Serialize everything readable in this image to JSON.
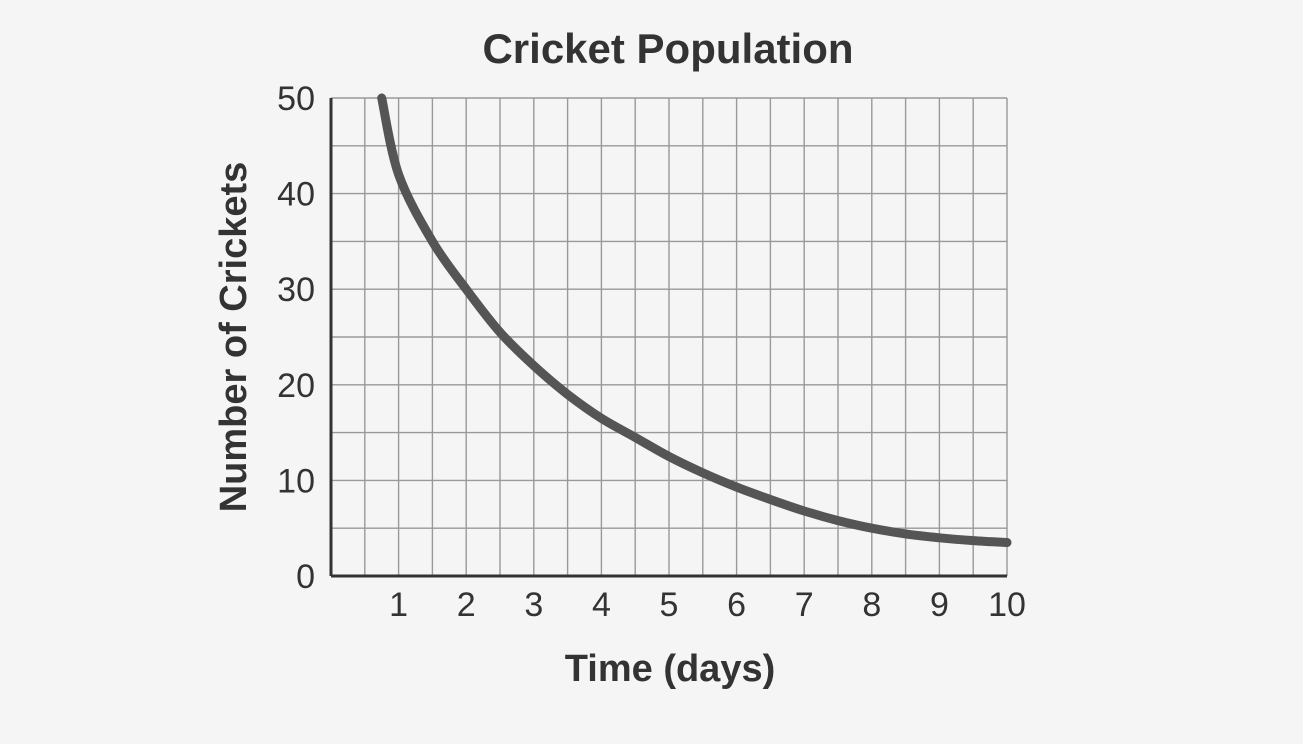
{
  "colors": {
    "background": "#f5f5f5",
    "grid": "#999999",
    "axis": "#333333",
    "curve": "#555555",
    "text": "#333333"
  },
  "chart_data": {
    "type": "line",
    "title": "Cricket Population",
    "xlabel": "Time (days)",
    "ylabel": "Number of Crickets",
    "xlim": [
      0,
      10
    ],
    "ylim": [
      0,
      50
    ],
    "grid": true,
    "x_ticks": [
      "1",
      "2",
      "3",
      "4",
      "5",
      "6",
      "7",
      "8",
      "9",
      "10"
    ],
    "y_ticks": [
      "0",
      "10",
      "20",
      "30",
      "40",
      "50"
    ],
    "series": [
      {
        "x": [
          0.75,
          1,
          1.5,
          2,
          2.5,
          3,
          3.5,
          4,
          4.5,
          5,
          5.5,
          6,
          6.5,
          7,
          7.5,
          8,
          8.5,
          9,
          9.5,
          10
        ],
        "values": [
          50,
          42,
          35,
          30,
          25.5,
          22,
          19,
          16.5,
          14.5,
          12.5,
          10.8,
          9.3,
          8,
          6.8,
          5.8,
          5,
          4.4,
          4,
          3.7,
          3.5
        ]
      }
    ]
  }
}
